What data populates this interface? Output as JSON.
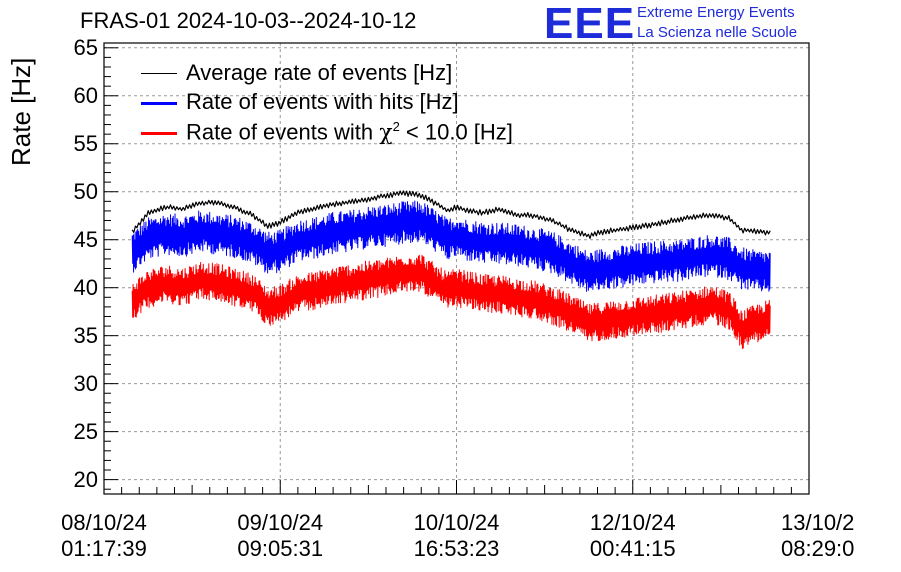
{
  "header": {
    "title": "FRAS-01 2024-10-03--2024-10-12",
    "logo_text": "EEE",
    "logo_line1": "Extreme Energy Events",
    "logo_line2": "La Scienza nelle Scuole"
  },
  "colors": {
    "average": "#000000",
    "hits": "#0000ff",
    "chi2": "#ff0000",
    "grid": "#9a9a9a",
    "logo": "#1e2bd9"
  },
  "chart_data": {
    "type": "line",
    "title": "FRAS-01 2024-10-03--2024-10-12",
    "xlabel": "",
    "ylabel": "Rate [Hz]",
    "ylim": [
      18.5,
      65.5
    ],
    "yticks": [
      20,
      25,
      30,
      35,
      40,
      45,
      50,
      55,
      60,
      65
    ],
    "ytick_labels": [
      "20",
      "25",
      "30",
      "35",
      "40",
      "45",
      "50",
      "55",
      "60",
      "65"
    ],
    "xlim": [
      0,
      4
    ],
    "xticks": [
      0,
      1,
      2,
      3,
      4
    ],
    "xtick_labels": [
      [
        "08/10/24",
        "01:17:39"
      ],
      [
        "09/10/24",
        "09:05:31"
      ],
      [
        "10/10/24",
        "16:53:23"
      ],
      [
        "12/10/24",
        "00:41:15"
      ],
      [
        "13/10/2",
        "08:29:0"
      ]
    ],
    "grid": true,
    "legend_position": "top-left",
    "legend": {
      "average": "Average rate of events [Hz]",
      "hits": "Rate of events with hits [Hz]",
      "chi2_prefix": "Rate of events with ",
      "chi2_symbol": "χ",
      "chi2_exp": "2",
      "chi2_suffix": " < 10.0 [Hz]"
    },
    "x": [
      0.16,
      0.25,
      0.35,
      0.45,
      0.55,
      0.65,
      0.75,
      0.85,
      0.93,
      1.0,
      1.1,
      1.2,
      1.3,
      1.4,
      1.5,
      1.6,
      1.7,
      1.8,
      1.9,
      1.95,
      2.0,
      2.05,
      2.15,
      2.25,
      2.35,
      2.45,
      2.55,
      2.65,
      2.75,
      2.85,
      2.95,
      3.05,
      3.15,
      3.25,
      3.35,
      3.45,
      3.55,
      3.62,
      3.7,
      3.78
    ],
    "series": [
      {
        "name": "Average rate of events [Hz]",
        "key": "average",
        "values": [
          45.8,
          47.8,
          48.4,
          48.2,
          48.8,
          48.9,
          48.3,
          47.5,
          46.4,
          46.8,
          47.9,
          48.3,
          48.7,
          48.9,
          49.2,
          49.6,
          49.9,
          49.6,
          48.6,
          48.0,
          48.4,
          48.1,
          47.8,
          48.2,
          47.6,
          47.5,
          46.9,
          46.0,
          45.4,
          45.9,
          46.1,
          46.4,
          46.7,
          47.1,
          47.4,
          47.6,
          47.2,
          46.0,
          45.9,
          45.7
        ]
      },
      {
        "name": "Rate of events with hits [Hz]",
        "key": "hits",
        "values": [
          43.7,
          45.1,
          45.6,
          45.4,
          45.9,
          45.6,
          45.3,
          44.6,
          43.6,
          43.8,
          44.9,
          45.2,
          45.7,
          45.9,
          46.3,
          46.5,
          46.8,
          46.9,
          45.7,
          45.0,
          45.4,
          45.0,
          44.7,
          44.6,
          44.4,
          44.1,
          43.6,
          42.6,
          41.6,
          42.0,
          42.2,
          42.5,
          42.7,
          42.8,
          43.1,
          43.4,
          43.0,
          42.0,
          41.7,
          41.7
        ]
      },
      {
        "name": "Rate of events with χ2 < 10.0 [Hz]",
        "key": "chi2",
        "values": [
          38.6,
          39.9,
          40.4,
          40.1,
          40.8,
          40.5,
          40.0,
          39.4,
          38.0,
          38.3,
          39.4,
          39.7,
          40.2,
          40.5,
          40.8,
          41.1,
          41.5,
          41.6,
          40.2,
          39.7,
          40.0,
          39.8,
          39.4,
          39.3,
          39.0,
          38.7,
          38.1,
          37.3,
          36.3,
          36.6,
          36.8,
          37.1,
          37.3,
          37.6,
          37.9,
          38.3,
          37.6,
          35.6,
          36.3,
          36.8
        ]
      }
    ],
    "noise_amplitude": {
      "average": 0.3,
      "hits": 2.2,
      "chi2": 2.0
    }
  }
}
